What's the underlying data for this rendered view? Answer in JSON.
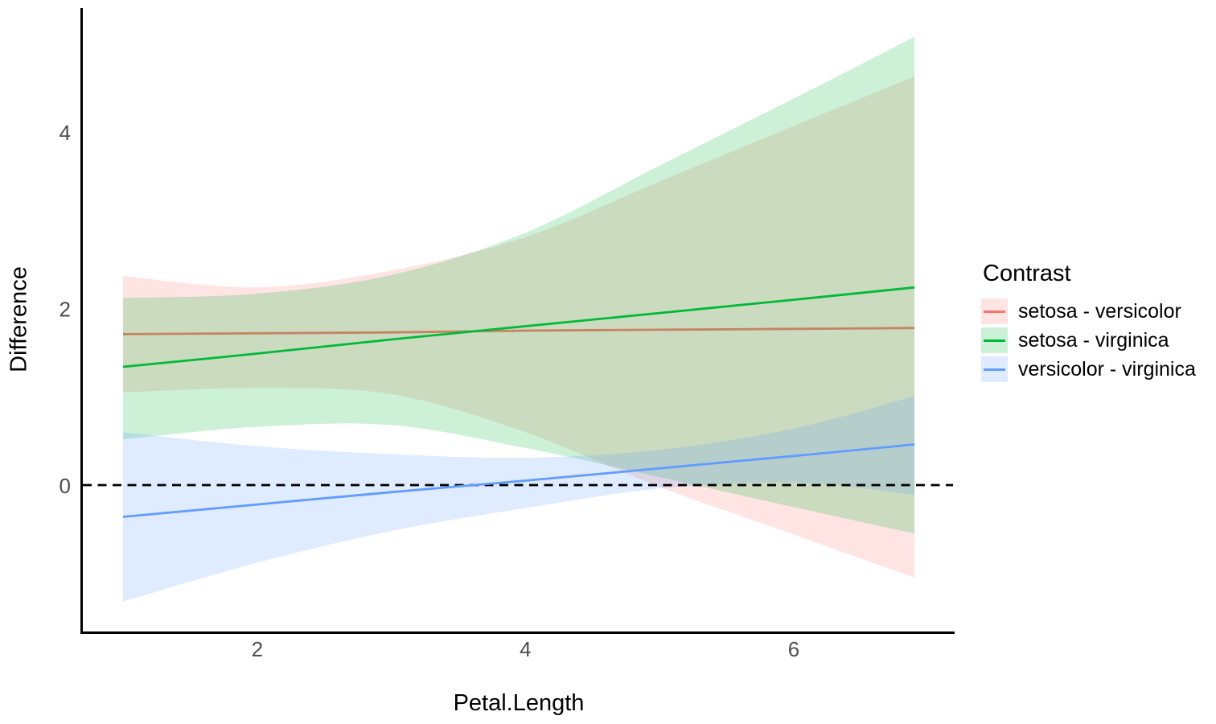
{
  "chart_data": {
    "type": "line",
    "title": "",
    "xlabel": "Petal.Length",
    "ylabel": "Difference",
    "legend_title": "Contrast",
    "legend_position": "right",
    "grid": false,
    "x_ticks": [
      2,
      4,
      6
    ],
    "y_ticks": [
      0,
      2,
      4
    ],
    "xlim": [
      0.7,
      7.2
    ],
    "ylim": [
      -1.67,
      5.41
    ],
    "reference_line": {
      "y": 0,
      "style": "dashed",
      "color": "#000000"
    },
    "ribbon_opacity": 0.2,
    "axis_color": "#000000",
    "tick_label_color": "#4D4D4D",
    "x": [
      1,
      2,
      3,
      4,
      5,
      6,
      6.9
    ],
    "series": [
      {
        "name": "setosa - versicolor",
        "color": "#F8766D",
        "line": [
          1.71,
          1.72,
          1.73,
          1.75,
          1.76,
          1.77,
          1.78
        ],
        "upper": [
          2.37,
          2.24,
          2.43,
          2.81,
          3.44,
          4.07,
          4.63
        ],
        "lower": [
          1.05,
          1.1,
          1.03,
          0.6,
          -0.02,
          -0.56,
          -1.05
        ]
      },
      {
        "name": "setosa - virginica",
        "color": "#00BA38",
        "line": [
          1.34,
          1.49,
          1.65,
          1.8,
          1.95,
          2.1,
          2.24
        ],
        "upper": [
          2.12,
          2.17,
          2.38,
          2.86,
          3.62,
          4.38,
          5.08
        ],
        "lower": [
          0.52,
          0.66,
          0.68,
          0.42,
          0.09,
          -0.25,
          -0.55
        ]
      },
      {
        "name": "versicolor - virginica",
        "color": "#619CFF",
        "line": [
          -0.36,
          -0.22,
          -0.08,
          0.05,
          0.19,
          0.33,
          0.46
        ],
        "upper": [
          0.6,
          0.44,
          0.35,
          0.31,
          0.4,
          0.64,
          1.01
        ],
        "lower": [
          -1.32,
          -0.88,
          -0.52,
          -0.26,
          -0.04,
          0.03,
          -0.11
        ]
      }
    ]
  }
}
